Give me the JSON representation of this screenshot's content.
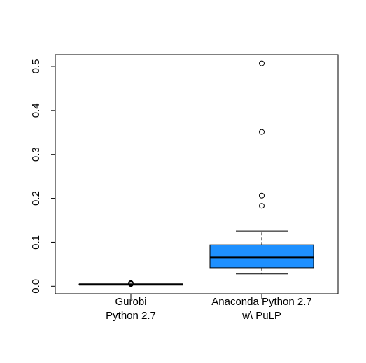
{
  "chart_data": {
    "type": "boxplot",
    "title": "",
    "xlabel": "",
    "ylabel": "",
    "ylim": [
      -0.017,
      0.527
    ],
    "yticks": [
      0.0,
      0.1,
      0.2,
      0.3,
      0.4,
      0.5
    ],
    "ytick_labels": [
      "0.0",
      "0.1",
      "0.2",
      "0.3",
      "0.4",
      "0.5"
    ],
    "categories": [
      {
        "line1": "Gurobi",
        "line2": "Python 2.7"
      },
      {
        "line1": "Anaconda Python 2.7",
        "line2": "w\\ PuLP"
      }
    ],
    "series": [
      {
        "min": 0.004,
        "q1": 0.004,
        "median": 0.004,
        "q3": 0.005,
        "max": 0.005,
        "outliers": [
          0.005,
          0.006,
          0.007
        ],
        "color": "#e0e0e0"
      },
      {
        "min": 0.028,
        "q1": 0.042,
        "median": 0.066,
        "q3": 0.094,
        "max": 0.126,
        "outliers": [
          0.183,
          0.206,
          0.351,
          0.507
        ],
        "color": "#1e90ff"
      }
    ]
  }
}
